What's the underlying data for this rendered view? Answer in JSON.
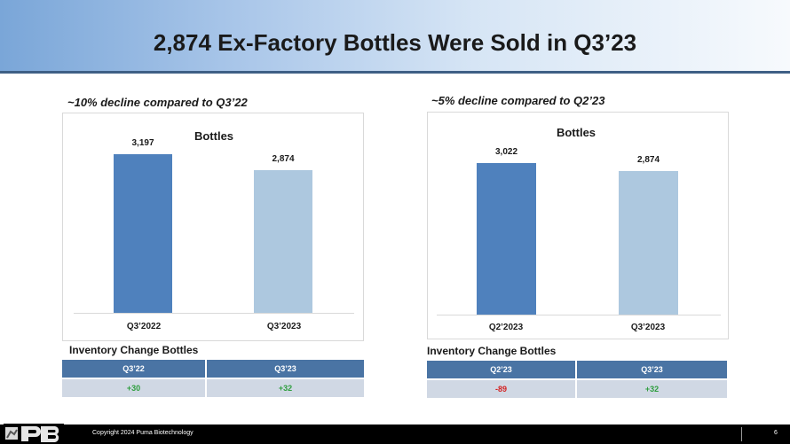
{
  "slide": {
    "title": "2,874 Ex-Factory Bottles Were Sold in Q3’23",
    "page_number": "6"
  },
  "footer": {
    "copyright": "Copyright  2024 Puma  Biotechnology"
  },
  "colors": {
    "dark_bar": "#4f81bd",
    "light_bar": "#adc8df",
    "positive": "#2e9e3e",
    "negative": "#d42020"
  },
  "chart_data": [
    {
      "type": "bar",
      "subtitle": "~10% decline compared to Q3’22",
      "title": "Bottles",
      "categories": [
        "Q3’2022",
        "Q3’2023"
      ],
      "values": [
        3197,
        2874
      ],
      "value_labels": [
        "3,197",
        "2,874"
      ],
      "ylim": [
        0,
        3600
      ],
      "xlabel": "",
      "ylabel": ""
    },
    {
      "type": "bar",
      "subtitle": "~5% decline compared to Q2’23",
      "title": "Bottles",
      "categories": [
        "Q2’2023",
        "Q3’2023"
      ],
      "values": [
        3022,
        2874
      ],
      "value_labels": [
        "3,022",
        "2,874"
      ],
      "ylim": [
        0,
        3400
      ],
      "xlabel": "",
      "ylabel": ""
    }
  ],
  "inventory": [
    {
      "heading": "Inventory Change Bottles",
      "headers": [
        "Q3’22",
        "Q3’23"
      ],
      "values": [
        "+30",
        "+32"
      ],
      "signs": [
        "positive",
        "positive"
      ]
    },
    {
      "heading": "Inventory Change Bottles",
      "headers": [
        "Q2’23",
        "Q3’23"
      ],
      "values": [
        "-89",
        "+32"
      ],
      "signs": [
        "negative",
        "positive"
      ]
    }
  ]
}
